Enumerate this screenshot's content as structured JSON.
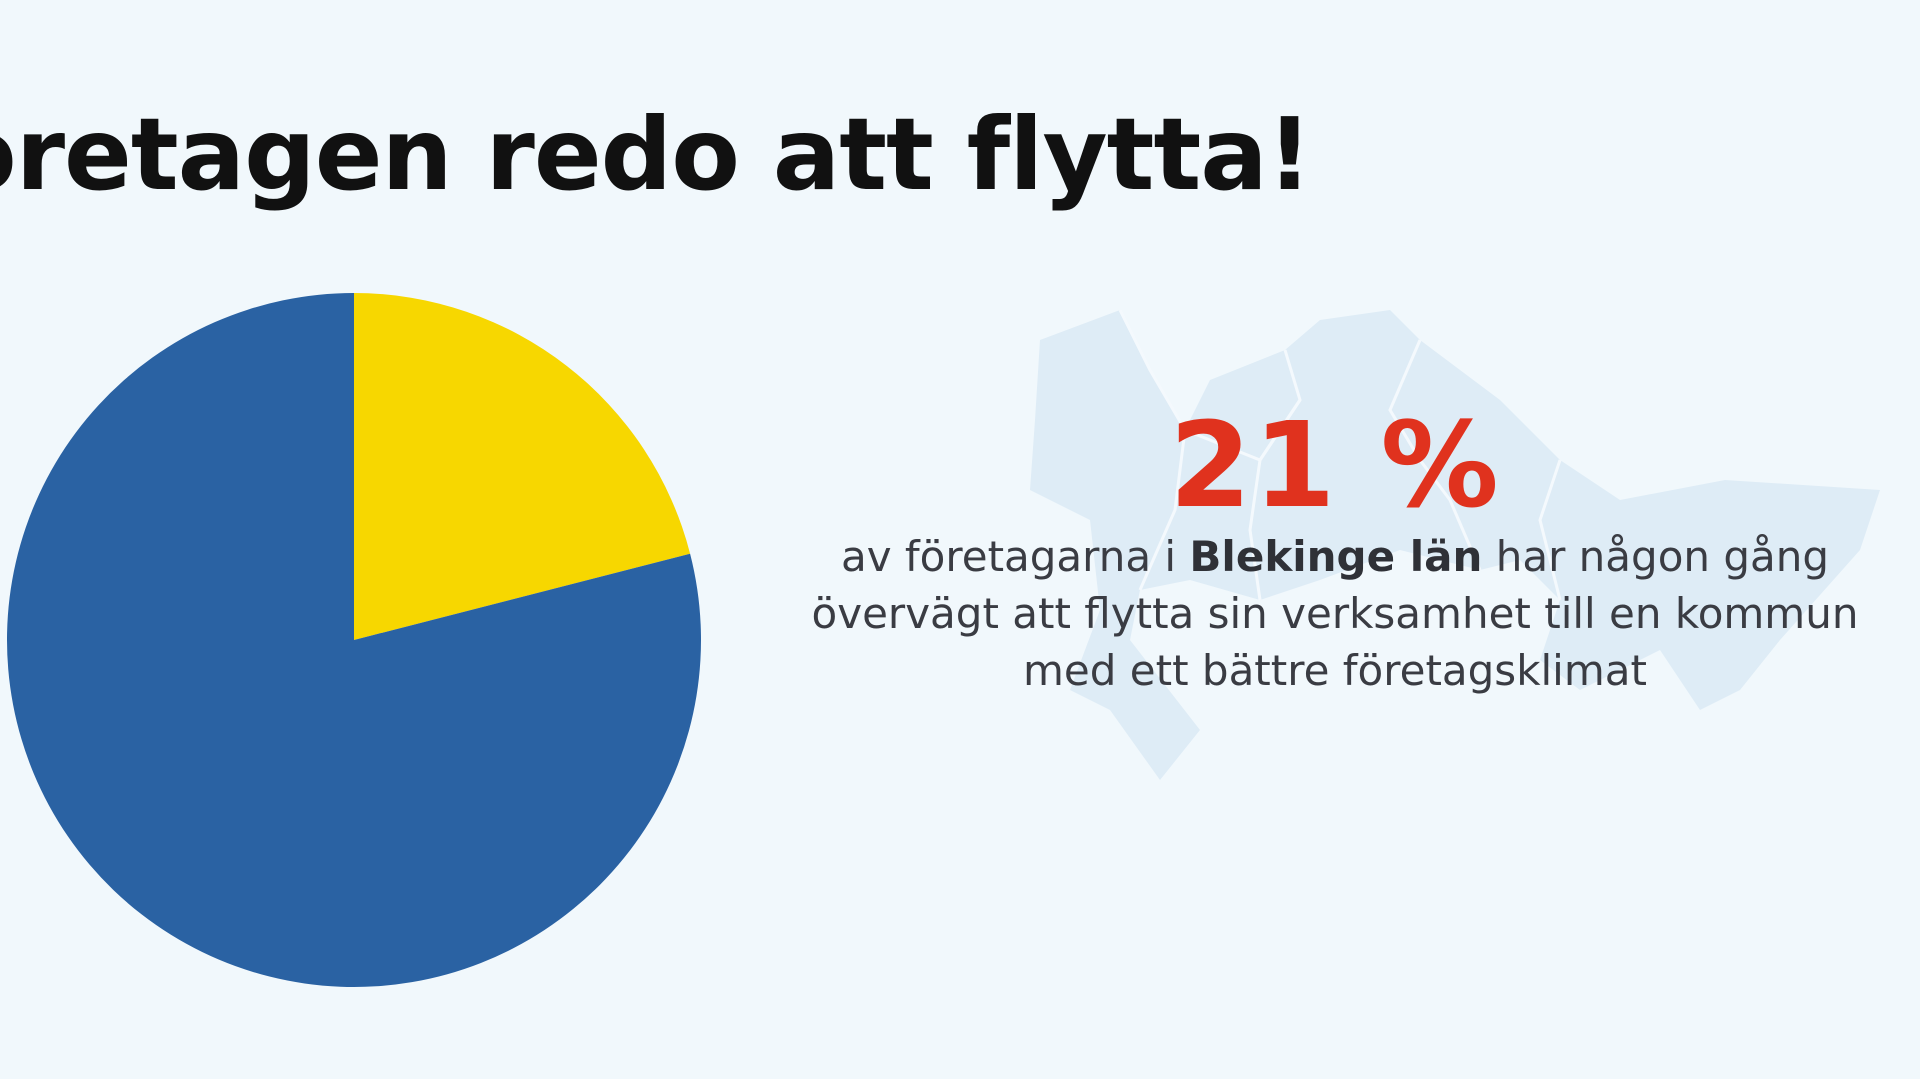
{
  "headline": "öretagen redo att flytta!",
  "stat": {
    "percent": "21 %",
    "line1_pre": "av företagarna i ",
    "line1_bold": "Blekinge län",
    "line1_post": " har någon gång",
    "line2": "övervägt att flytta sin verksamhet till en kommun",
    "line3": "med ett bättre företagsklimat"
  },
  "chart_data": {
    "type": "pie",
    "slices": [
      {
        "value": 21,
        "color": "#f7d700"
      },
      {
        "value": 79,
        "color": "#2a62a3"
      }
    ],
    "start": "12 o'clock",
    "direction": "clockwise"
  },
  "colors": {
    "background": "#f1f8fc",
    "accent_red": "#e0321e",
    "map_fill": "#deecf6"
  }
}
